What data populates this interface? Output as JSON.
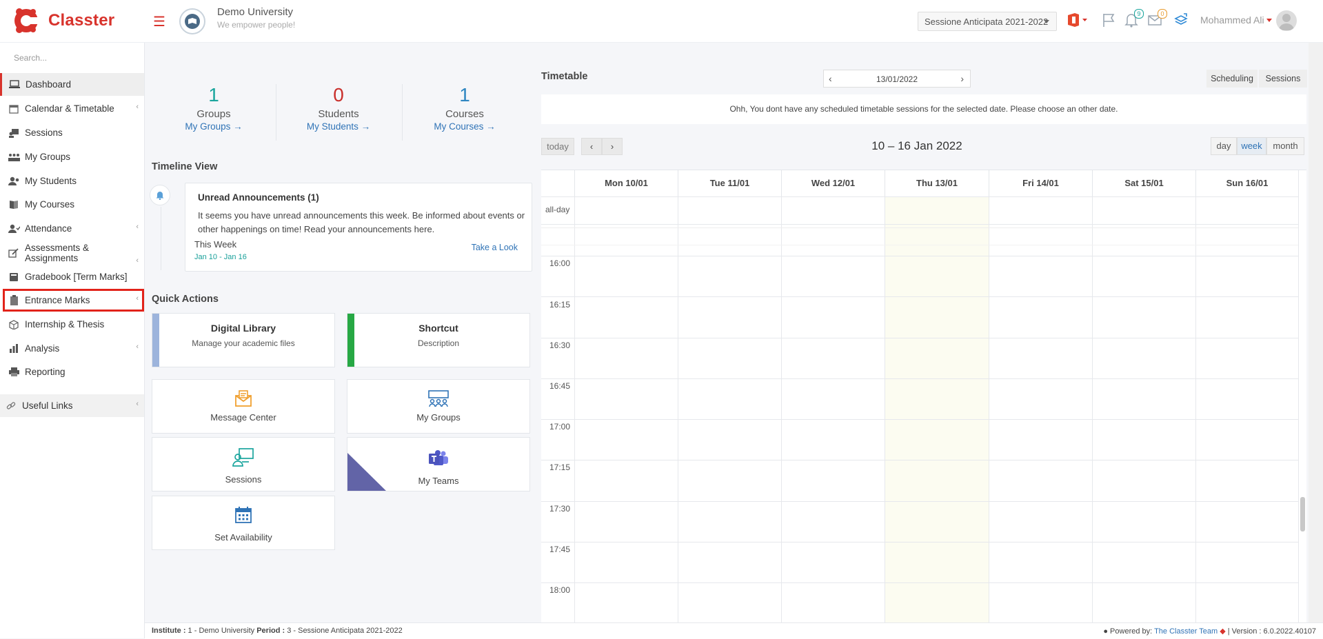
{
  "brand": {
    "name": "Classter"
  },
  "header": {
    "university_name": "Demo University",
    "university_tagline": "We empower people!",
    "session_selected": "Sessione Anticipata 2021-2022",
    "notifications_count": "9",
    "messages_count": "0",
    "user_name": "Mohammed Ali"
  },
  "sidebar": {
    "search_placeholder": "Search...",
    "items": [
      {
        "label": "Dashboard",
        "icon": "laptop-icon"
      },
      {
        "label": "Calendar & Timetable",
        "icon": "calendar-icon"
      },
      {
        "label": "Sessions",
        "icon": "sessions-icon"
      },
      {
        "label": "My Groups",
        "icon": "groups-icon"
      },
      {
        "label": "My Students",
        "icon": "students-icon"
      },
      {
        "label": "My Courses",
        "icon": "courses-icon"
      },
      {
        "label": "Attendance",
        "icon": "attendance-icon"
      },
      {
        "label": "Assessments & Assignments",
        "icon": "edit-icon"
      },
      {
        "label": "Gradebook [Term Marks]",
        "icon": "gradebook-icon"
      },
      {
        "label": "Entrance Marks",
        "icon": "clipboard-icon"
      },
      {
        "label": "Internship & Thesis",
        "icon": "box-icon"
      },
      {
        "label": "Analysis",
        "icon": "chart-icon"
      },
      {
        "label": "Reporting",
        "icon": "printer-icon"
      }
    ],
    "useful_links": "Useful Links"
  },
  "stats": [
    {
      "value": "1",
      "label": "Groups",
      "link": "My Groups →",
      "color": "#1aa59d"
    },
    {
      "value": "0",
      "label": "Students",
      "link": "My Students →",
      "color": "#c9302c"
    },
    {
      "value": "1",
      "label": "Courses",
      "link": "My Courses →",
      "color": "#2e86c1"
    }
  ],
  "timeline": {
    "title": "Timeline View",
    "card_title": "Unread Announcements (1)",
    "card_text": "It seems you have unread announcements this week. Be informed about events or other happenings on time! Read your announcements here.",
    "week_label": "This Week",
    "week_range": "Jan 10 - Jan 16",
    "action": "Take a Look"
  },
  "quick_actions": {
    "title": "Quick Actions",
    "digital_library": {
      "title": "Digital Library",
      "desc": "Manage your academic files"
    },
    "shortcut": {
      "title": "Shortcut",
      "desc": "Description"
    },
    "message_center": "Message Center",
    "my_groups": "My Groups",
    "sessions": "Sessions",
    "my_teams": "My Teams",
    "set_availability": "Set Availability"
  },
  "timetable": {
    "title": "Timetable",
    "date": "13/01/2022",
    "scheduling": "Scheduling",
    "sessions": "Sessions",
    "message": "Ohh, You dont have any scheduled timetable sessions for the selected date. Please choose an other date."
  },
  "calendar": {
    "today": "today",
    "range_title": "10 – 16 Jan 2022",
    "views": [
      "day",
      "week",
      "month"
    ],
    "active_view": "week",
    "days": [
      "Mon 10/01",
      "Tue 11/01",
      "Wed 12/01",
      "Thu 13/01",
      "Fri 14/01",
      "Sat 15/01",
      "Sun 16/01"
    ],
    "all_day": "all-day",
    "times": [
      "16:00",
      "16:15",
      "16:30",
      "16:45",
      "17:00",
      "17:15",
      "17:30",
      "17:45",
      "18:00"
    ]
  },
  "footer": {
    "institute_label": "Institute :",
    "institute_value": " 1 - Demo University ",
    "period_label": "Period :",
    "period_value": " 3 - Sessione Anticipata 2021-2022",
    "powered_by": "Powered by: ",
    "team": "The Classter Team",
    "version": " | Version : 6.0.2022.40107"
  }
}
